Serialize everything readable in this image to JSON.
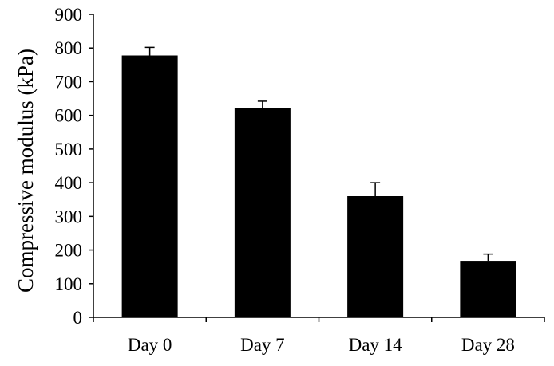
{
  "chart_data": {
    "type": "bar",
    "title": "",
    "xlabel": "",
    "ylabel": "Compressive modulus (kPa)",
    "categories": [
      "Day 0",
      "Day 7",
      "Day 14",
      "Day 28"
    ],
    "values": [
      778,
      622,
      360,
      168
    ],
    "error": [
      24,
      20,
      40,
      20
    ],
    "ylim": [
      0,
      900
    ],
    "yticks": [
      0,
      100,
      200,
      300,
      400,
      500,
      600,
      700,
      800,
      900
    ],
    "grid": false,
    "legend": "none",
    "colors": {
      "bar": "#000000",
      "axis": "#000000",
      "background": "#ffffff"
    }
  }
}
